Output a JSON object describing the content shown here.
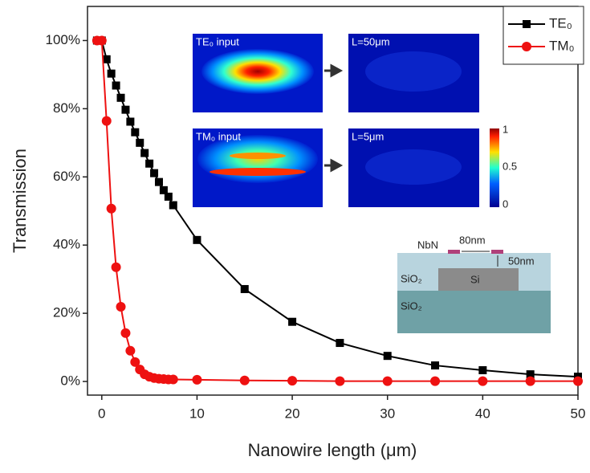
{
  "chart_data": {
    "type": "line",
    "x_label": "Nanowire length (μm)",
    "y_label": "Transmission",
    "xlim": [
      -1.5,
      50
    ],
    "ylim": [
      -4,
      110
    ],
    "xticks": [
      0,
      10,
      20,
      30,
      40,
      50
    ],
    "yticks": [
      {
        "value": 0,
        "label": "0%"
      },
      {
        "value": 20,
        "label": "20%"
      },
      {
        "value": 40,
        "label": "40%"
      },
      {
        "value": 60,
        "label": "60%"
      },
      {
        "value": 80,
        "label": "80%"
      },
      {
        "value": 100,
        "label": "100%"
      }
    ],
    "legend": "upper right",
    "series": [
      {
        "name": "TE₀",
        "color": "#000000",
        "marker": "square",
        "x": [
          -0.5,
          0,
          0.5,
          1,
          1.5,
          2,
          2.5,
          3,
          3.5,
          4,
          4.5,
          5,
          5.5,
          6,
          6.5,
          7,
          7.5,
          10,
          15,
          20,
          25,
          30,
          35,
          40,
          45,
          50
        ],
        "values": [
          100,
          100,
          94.5,
          90.3,
          86.8,
          83.2,
          79.7,
          76.2,
          73.1,
          70.0,
          67.0,
          63.9,
          61.1,
          58.5,
          56.1,
          54.2,
          51.7,
          41.5,
          27.1,
          17.5,
          11.3,
          7.5,
          4.7,
          3.3,
          2.1,
          1.4
        ]
      },
      {
        "name": "TM₀",
        "color": "#ee1111",
        "marker": "circle",
        "x": [
          -0.5,
          0,
          0.5,
          1,
          1.5,
          2,
          2.5,
          3,
          3.5,
          4,
          4.5,
          5,
          5.5,
          6,
          6.5,
          7,
          7.5,
          10,
          15,
          20,
          25,
          30,
          35,
          40,
          45,
          50
        ],
        "values": [
          100,
          100,
          76.4,
          50.7,
          33.5,
          21.9,
          14.2,
          9.0,
          5.7,
          3.5,
          2.1,
          1.4,
          1.0,
          0.8,
          0.7,
          0.6,
          0.6,
          0.5,
          0.3,
          0.2,
          0.1,
          0.1,
          0.1,
          0.1,
          0.1,
          0.1
        ]
      }
    ],
    "insets": {
      "field_labels": [
        "TE₀ input",
        "L=50μm",
        "TM₀ input",
        "L=5μm"
      ],
      "colorbar_labels": [
        "1",
        "0.5",
        "0"
      ],
      "structure_labels": {
        "nbn": "NbN",
        "gap": "80nm",
        "height": "50nm",
        "cladding": "SiO₂",
        "core": "Si",
        "substrate": "SiO₂"
      }
    }
  }
}
